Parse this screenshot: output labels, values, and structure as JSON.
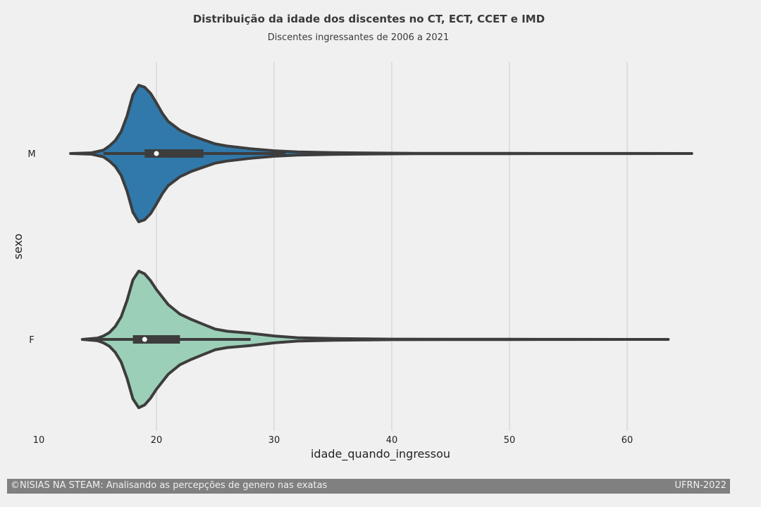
{
  "chart_data": {
    "type": "violin",
    "orientation": "horizontal",
    "title": "Distribuição da idade dos discentes no CT, ECT, CCET e IMD",
    "subtitle": "Discentes ingressantes de 2006 a 2021",
    "xlabel": "idade_quando_ingressou",
    "ylabel": "sexo",
    "xlim": [
      10,
      66
    ],
    "xticks": [
      10,
      20,
      30,
      40,
      50,
      60
    ],
    "categories": [
      "M",
      "F"
    ],
    "grid": "vertical",
    "violins": [
      {
        "category": "M",
        "color": "#3079aa",
        "min": 12.7,
        "max": 65.5,
        "q1": 19,
        "median": 20,
        "q3": 24,
        "whisker_low": 15.5,
        "whisker_high": 31,
        "density": [
          [
            12.7,
            0.0
          ],
          [
            14.5,
            0.01
          ],
          [
            15.5,
            0.05
          ],
          [
            16.0,
            0.11
          ],
          [
            16.5,
            0.19
          ],
          [
            17.0,
            0.32
          ],
          [
            17.5,
            0.55
          ],
          [
            18.0,
            0.86
          ],
          [
            18.5,
            1.0
          ],
          [
            19.0,
            0.97
          ],
          [
            19.5,
            0.88
          ],
          [
            20.0,
            0.74
          ],
          [
            20.5,
            0.59
          ],
          [
            21.0,
            0.47
          ],
          [
            22.0,
            0.34
          ],
          [
            23.0,
            0.26
          ],
          [
            24.0,
            0.2
          ],
          [
            25.0,
            0.14
          ],
          [
            26.0,
            0.11
          ],
          [
            28.0,
            0.07
          ],
          [
            30.0,
            0.04
          ],
          [
            32.0,
            0.024
          ],
          [
            35.0,
            0.012
          ],
          [
            38.0,
            0.007
          ],
          [
            42.0,
            0.003
          ],
          [
            50.0,
            0.002
          ],
          [
            55.0,
            0.0015
          ],
          [
            60.0,
            0.001
          ],
          [
            65.5,
            0.0
          ]
        ]
      },
      {
        "category": "F",
        "color": "#9ccfb7",
        "min": 13.7,
        "max": 63.5,
        "q1": 18,
        "median": 19,
        "q3": 22,
        "whisker_low": 14.5,
        "whisker_high": 28,
        "density": [
          [
            13.7,
            0.0
          ],
          [
            15.0,
            0.02
          ],
          [
            15.5,
            0.05
          ],
          [
            16.0,
            0.1
          ],
          [
            16.5,
            0.19
          ],
          [
            17.0,
            0.33
          ],
          [
            17.5,
            0.57
          ],
          [
            18.0,
            0.87
          ],
          [
            18.5,
            1.0
          ],
          [
            19.0,
            0.96
          ],
          [
            19.5,
            0.86
          ],
          [
            20.0,
            0.73
          ],
          [
            21.0,
            0.51
          ],
          [
            22.0,
            0.37
          ],
          [
            23.0,
            0.29
          ],
          [
            24.0,
            0.22
          ],
          [
            25.0,
            0.15
          ],
          [
            26.0,
            0.12
          ],
          [
            28.0,
            0.09
          ],
          [
            30.0,
            0.05
          ],
          [
            32.0,
            0.025
          ],
          [
            35.0,
            0.013
          ],
          [
            38.0,
            0.007
          ],
          [
            40.0,
            0.004
          ],
          [
            50.0,
            0.002
          ],
          [
            55.0,
            0.0012
          ],
          [
            63.5,
            0.0
          ]
        ]
      }
    ]
  },
  "footer": {
    "left": "©NISIAS NA STEAM: Analisando as percepções de genero nas exatas",
    "right": "UFRN-2022",
    "color": "#808080"
  }
}
